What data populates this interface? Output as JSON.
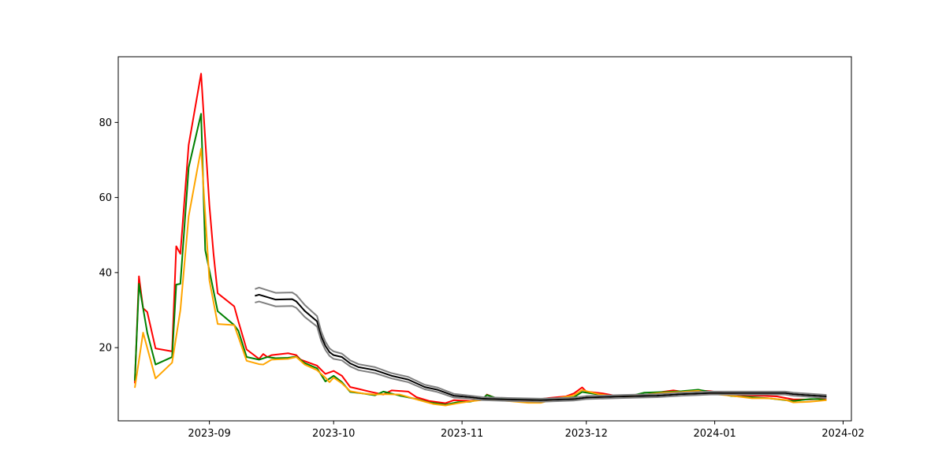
{
  "chart_data": {
    "type": "line",
    "title": "",
    "xlabel": "",
    "ylabel": "",
    "x_axis_type": "date",
    "xlim": [
      "2023-08-10",
      "2024-02-03"
    ],
    "ylim": [
      0.5,
      97.5
    ],
    "grid": false,
    "legend": "none",
    "x_ticks": [
      "2023-09",
      "2023-10",
      "2023-11",
      "2023-12",
      "2024-01",
      "2024-02"
    ],
    "y_ticks": [
      20,
      40,
      60,
      80
    ],
    "series": [
      {
        "color": "#ff0000",
        "points": [
          [
            "2023-08-14",
            10.5
          ],
          [
            "2023-08-15",
            39.0
          ],
          [
            "2023-08-16",
            30.5
          ],
          [
            "2023-08-17",
            29.5
          ],
          [
            "2023-08-19",
            19.8
          ],
          [
            "2023-08-23",
            19.0
          ],
          [
            "2023-08-24",
            47.0
          ],
          [
            "2023-08-25",
            45.0
          ],
          [
            "2023-08-27",
            74.0
          ],
          [
            "2023-08-30",
            93.0
          ],
          [
            "2023-09-01",
            58.0
          ],
          [
            "2023-09-02",
            45.0
          ],
          [
            "2023-09-03",
            34.5
          ],
          [
            "2023-09-07",
            31.0
          ],
          [
            "2023-09-08",
            27.0
          ],
          [
            "2023-09-10",
            19.5
          ],
          [
            "2023-09-13",
            17.0
          ],
          [
            "2023-09-14",
            18.3
          ],
          [
            "2023-09-15",
            17.5
          ],
          [
            "2023-09-16",
            18.0
          ],
          [
            "2023-09-20",
            18.5
          ],
          [
            "2023-09-22",
            18.0
          ],
          [
            "2023-09-23",
            16.8
          ],
          [
            "2023-09-27",
            15.2
          ],
          [
            "2023-09-29",
            13.0
          ],
          [
            "2023-10-01",
            13.8
          ],
          [
            "2023-10-03",
            12.5
          ],
          [
            "2023-10-05",
            9.5
          ],
          [
            "2023-10-07",
            9.0
          ],
          [
            "2023-10-10",
            8.2
          ],
          [
            "2023-10-13",
            7.5
          ],
          [
            "2023-10-15",
            8.6
          ],
          [
            "2023-10-19",
            8.3
          ],
          [
            "2023-10-21",
            6.8
          ],
          [
            "2023-10-24",
            5.8
          ],
          [
            "2023-10-28",
            5.2
          ],
          [
            "2023-10-30",
            6.0
          ],
          [
            "2023-11-03",
            5.8
          ],
          [
            "2023-11-06",
            6.1
          ],
          [
            "2023-11-07",
            7.5
          ],
          [
            "2023-11-09",
            6.6
          ],
          [
            "2023-11-12",
            6.3
          ],
          [
            "2023-11-15",
            6.1
          ],
          [
            "2023-11-18",
            6.0
          ],
          [
            "2023-11-22",
            6.6
          ],
          [
            "2023-11-26",
            7.0
          ],
          [
            "2023-11-28",
            7.8
          ],
          [
            "2023-11-30",
            9.4
          ],
          [
            "2023-12-01",
            8.3
          ],
          [
            "2023-12-05",
            7.8
          ],
          [
            "2023-12-08",
            7.2
          ],
          [
            "2023-12-12",
            7.3
          ],
          [
            "2023-12-16",
            7.5
          ],
          [
            "2023-12-18",
            8.0
          ],
          [
            "2023-12-22",
            8.6
          ],
          [
            "2023-12-24",
            8.3
          ],
          [
            "2023-12-28",
            8.6
          ],
          [
            "2023-12-31",
            8.4
          ],
          [
            "2024-01-04",
            7.7
          ],
          [
            "2024-01-08",
            7.3
          ],
          [
            "2024-01-12",
            7.2
          ],
          [
            "2024-01-16",
            7.0
          ],
          [
            "2024-01-20",
            6.2
          ],
          [
            "2024-01-24",
            6.2
          ],
          [
            "2024-01-28",
            6.5
          ]
        ]
      },
      {
        "color": "#008000",
        "points": [
          [
            "2023-08-14",
            11.2
          ],
          [
            "2023-08-15",
            37.0
          ],
          [
            "2023-08-17",
            24.0
          ],
          [
            "2023-08-19",
            15.5
          ],
          [
            "2023-08-23",
            17.5
          ],
          [
            "2023-08-24",
            36.8
          ],
          [
            "2023-08-25",
            37.0
          ],
          [
            "2023-08-27",
            68.0
          ],
          [
            "2023-08-30",
            82.3
          ],
          [
            "2023-08-31",
            46.0
          ],
          [
            "2023-09-03",
            29.7
          ],
          [
            "2023-09-07",
            26.0
          ],
          [
            "2023-09-08",
            24.5
          ],
          [
            "2023-09-10",
            17.5
          ],
          [
            "2023-09-13",
            16.8
          ],
          [
            "2023-09-15",
            17.5
          ],
          [
            "2023-09-17",
            17.2
          ],
          [
            "2023-09-20",
            17.3
          ],
          [
            "2023-09-22",
            17.6
          ],
          [
            "2023-09-24",
            15.9
          ],
          [
            "2023-09-27",
            14.5
          ],
          [
            "2023-09-29",
            11.0
          ],
          [
            "2023-10-01",
            12.5
          ],
          [
            "2023-10-03",
            10.8
          ],
          [
            "2023-10-05",
            8.2
          ],
          [
            "2023-10-08",
            7.8
          ],
          [
            "2023-10-11",
            7.3
          ],
          [
            "2023-10-13",
            8.3
          ],
          [
            "2023-10-17",
            7.2
          ],
          [
            "2023-10-21",
            6.3
          ],
          [
            "2023-10-24",
            5.4
          ],
          [
            "2023-10-28",
            4.8
          ],
          [
            "2023-10-31",
            5.5
          ],
          [
            "2023-11-03",
            5.6
          ],
          [
            "2023-11-06",
            6.4
          ],
          [
            "2023-11-07",
            7.4
          ],
          [
            "2023-11-10",
            6.3
          ],
          [
            "2023-11-15",
            6.3
          ],
          [
            "2023-11-20",
            6.0
          ],
          [
            "2023-11-24",
            6.4
          ],
          [
            "2023-11-28",
            6.8
          ],
          [
            "2023-11-30",
            8.2
          ],
          [
            "2023-12-04",
            7.5
          ],
          [
            "2023-12-08",
            7.0
          ],
          [
            "2023-12-12",
            7.2
          ],
          [
            "2023-12-15",
            8.0
          ],
          [
            "2023-12-20",
            8.2
          ],
          [
            "2023-12-24",
            8.4
          ],
          [
            "2023-12-28",
            8.8
          ],
          [
            "2024-01-01",
            8.0
          ],
          [
            "2024-01-05",
            7.1
          ],
          [
            "2024-01-10",
            6.8
          ],
          [
            "2024-01-14",
            6.5
          ],
          [
            "2024-01-18",
            6.0
          ],
          [
            "2024-01-20",
            5.8
          ],
          [
            "2024-01-24",
            6.3
          ],
          [
            "2024-01-26",
            6.3
          ],
          [
            "2024-01-28",
            6.0
          ]
        ]
      },
      {
        "color": "#ffa500",
        "points": [
          [
            "2023-08-14",
            9.3
          ],
          [
            "2023-08-16",
            24.0
          ],
          [
            "2023-08-19",
            11.8
          ],
          [
            "2023-08-23",
            16.0
          ],
          [
            "2023-08-25",
            30.0
          ],
          [
            "2023-08-27",
            55.0
          ],
          [
            "2023-08-30",
            73.0
          ],
          [
            "2023-09-01",
            38.0
          ],
          [
            "2023-09-03",
            26.3
          ],
          [
            "2023-09-07",
            26.0
          ],
          [
            "2023-09-10",
            16.5
          ],
          [
            "2023-09-13",
            15.6
          ],
          [
            "2023-09-14",
            15.5
          ],
          [
            "2023-09-16",
            16.8
          ],
          [
            "2023-09-20",
            17.0
          ],
          [
            "2023-09-22",
            17.5
          ],
          [
            "2023-09-24",
            15.5
          ],
          [
            "2023-09-27",
            14.0
          ],
          [
            "2023-09-29",
            12.0
          ],
          [
            "2023-09-30",
            10.8
          ],
          [
            "2023-10-01",
            12.0
          ],
          [
            "2023-10-03",
            10.5
          ],
          [
            "2023-10-05",
            8.4
          ],
          [
            "2023-10-08",
            7.8
          ],
          [
            "2023-10-11",
            7.5
          ],
          [
            "2023-10-13",
            7.6
          ],
          [
            "2023-10-17",
            7.5
          ],
          [
            "2023-10-21",
            6.2
          ],
          [
            "2023-10-25",
            5.0
          ],
          [
            "2023-10-28",
            4.6
          ],
          [
            "2023-10-31",
            5.2
          ],
          [
            "2023-11-03",
            5.7
          ],
          [
            "2023-11-07",
            6.2
          ],
          [
            "2023-11-12",
            5.8
          ],
          [
            "2023-11-17",
            5.3
          ],
          [
            "2023-11-20",
            5.3
          ],
          [
            "2023-11-24",
            6.5
          ],
          [
            "2023-11-28",
            7.3
          ],
          [
            "2023-11-30",
            8.7
          ],
          [
            "2023-12-04",
            7.6
          ],
          [
            "2023-12-08",
            7.0
          ],
          [
            "2023-12-12",
            7.0
          ],
          [
            "2023-12-16",
            7.6
          ],
          [
            "2023-12-20",
            8.0
          ],
          [
            "2023-12-24",
            8.2
          ],
          [
            "2023-12-28",
            8.5
          ],
          [
            "2024-01-01",
            7.6
          ],
          [
            "2024-01-05",
            7.2
          ],
          [
            "2024-01-10",
            6.5
          ],
          [
            "2024-01-14",
            6.5
          ],
          [
            "2024-01-18",
            6.1
          ],
          [
            "2024-01-20",
            5.4
          ],
          [
            "2024-01-24",
            5.6
          ],
          [
            "2024-01-28",
            6.0
          ]
        ]
      },
      {
        "color": "#000000",
        "points": [
          [
            "2023-09-12",
            33.8
          ],
          [
            "2023-09-13",
            34.1
          ],
          [
            "2023-09-17",
            32.8
          ],
          [
            "2023-09-21",
            32.9
          ],
          [
            "2023-09-22",
            32.3
          ],
          [
            "2023-09-24",
            29.8
          ],
          [
            "2023-09-27",
            27.0
          ],
          [
            "2023-09-28",
            23.0
          ],
          [
            "2023-09-29",
            20.5
          ],
          [
            "2023-09-30",
            18.8
          ],
          [
            "2023-10-01",
            18.0
          ],
          [
            "2023-10-03",
            17.5
          ],
          [
            "2023-10-05",
            15.8
          ],
          [
            "2023-10-07",
            14.8
          ],
          [
            "2023-10-11",
            14.0
          ],
          [
            "2023-10-15",
            12.5
          ],
          [
            "2023-10-19",
            11.5
          ],
          [
            "2023-10-23",
            9.5
          ],
          [
            "2023-10-26",
            8.8
          ],
          [
            "2023-10-30",
            7.2
          ],
          [
            "2023-11-03",
            6.8
          ],
          [
            "2023-11-06",
            6.4
          ],
          [
            "2023-11-12",
            6.2
          ],
          [
            "2023-11-20",
            6.0
          ],
          [
            "2023-11-28",
            6.3
          ],
          [
            "2023-12-01",
            6.7
          ],
          [
            "2023-12-10",
            7.0
          ],
          [
            "2023-12-18",
            7.2
          ],
          [
            "2023-12-24",
            7.6
          ],
          [
            "2023-12-31",
            7.9
          ],
          [
            "2024-01-07",
            7.9
          ],
          [
            "2024-01-18",
            7.9
          ],
          [
            "2024-01-20",
            7.6
          ],
          [
            "2024-01-28",
            7.0
          ]
        ]
      },
      {
        "color": "#808080",
        "points": [
          [
            "2023-09-12",
            35.6
          ],
          [
            "2023-09-13",
            36.0
          ],
          [
            "2023-09-17",
            34.6
          ],
          [
            "2023-09-21",
            34.7
          ],
          [
            "2023-09-22",
            34.0
          ],
          [
            "2023-09-24",
            31.4
          ],
          [
            "2023-09-27",
            28.4
          ],
          [
            "2023-09-28",
            24.3
          ],
          [
            "2023-09-29",
            21.6
          ],
          [
            "2023-09-30",
            19.8
          ],
          [
            "2023-10-01",
            19.0
          ],
          [
            "2023-10-03",
            18.4
          ],
          [
            "2023-10-05",
            16.6
          ],
          [
            "2023-10-07",
            15.6
          ],
          [
            "2023-10-11",
            14.8
          ],
          [
            "2023-10-15",
            13.2
          ],
          [
            "2023-10-19",
            12.2
          ],
          [
            "2023-10-23",
            10.1
          ],
          [
            "2023-10-26",
            9.4
          ],
          [
            "2023-10-30",
            7.7
          ],
          [
            "2023-11-03",
            7.2
          ],
          [
            "2023-11-06",
            6.8
          ],
          [
            "2023-11-12",
            6.6
          ],
          [
            "2023-11-20",
            6.4
          ],
          [
            "2023-11-28",
            6.7
          ],
          [
            "2023-12-01",
            7.1
          ],
          [
            "2023-12-10",
            7.4
          ],
          [
            "2023-12-18",
            7.6
          ],
          [
            "2023-12-24",
            8.0
          ],
          [
            "2023-12-31",
            8.3
          ],
          [
            "2024-01-07",
            8.3
          ],
          [
            "2024-01-18",
            8.3
          ],
          [
            "2024-01-20",
            8.0
          ],
          [
            "2024-01-28",
            7.4
          ]
        ]
      },
      {
        "color": "#808080",
        "points": [
          [
            "2023-09-12",
            32.0
          ],
          [
            "2023-09-13",
            32.3
          ],
          [
            "2023-09-17",
            31.0
          ],
          [
            "2023-09-21",
            31.1
          ],
          [
            "2023-09-22",
            30.6
          ],
          [
            "2023-09-24",
            28.2
          ],
          [
            "2023-09-27",
            25.6
          ],
          [
            "2023-09-28",
            21.8
          ],
          [
            "2023-09-29",
            19.4
          ],
          [
            "2023-09-30",
            17.8
          ],
          [
            "2023-10-01",
            17.0
          ],
          [
            "2023-10-03",
            16.6
          ],
          [
            "2023-10-05",
            15.0
          ],
          [
            "2023-10-07",
            14.0
          ],
          [
            "2023-10-11",
            13.2
          ],
          [
            "2023-10-15",
            11.8
          ],
          [
            "2023-10-19",
            10.8
          ],
          [
            "2023-10-23",
            8.9
          ],
          [
            "2023-10-26",
            8.2
          ],
          [
            "2023-10-30",
            6.7
          ],
          [
            "2023-11-03",
            6.4
          ],
          [
            "2023-11-06",
            6.0
          ],
          [
            "2023-11-12",
            5.8
          ],
          [
            "2023-11-20",
            5.6
          ],
          [
            "2023-11-28",
            5.9
          ],
          [
            "2023-12-01",
            6.3
          ],
          [
            "2023-12-10",
            6.6
          ],
          [
            "2023-12-18",
            6.8
          ],
          [
            "2023-12-24",
            7.2
          ],
          [
            "2023-12-31",
            7.5
          ],
          [
            "2024-01-07",
            7.5
          ],
          [
            "2024-01-18",
            7.5
          ],
          [
            "2024-01-20",
            7.2
          ],
          [
            "2024-01-28",
            6.6
          ]
        ]
      }
    ]
  }
}
